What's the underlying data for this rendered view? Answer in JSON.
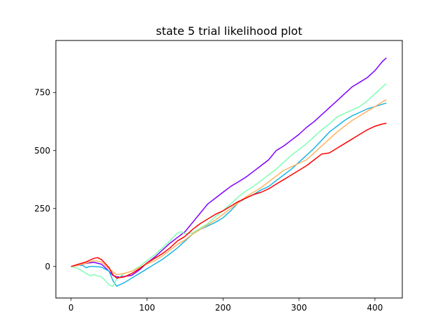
{
  "chart_data": {
    "type": "line",
    "title": "state 5 trial likelihood plot",
    "xlabel": "",
    "ylabel": "",
    "xlim": [
      -20,
      436
    ],
    "ylim": [
      -136,
      975
    ],
    "xticks": [
      0,
      100,
      200,
      300,
      400
    ],
    "yticks": [
      0,
      250,
      500,
      750
    ],
    "grid": false,
    "legend": "none",
    "series": [
      {
        "color": "#8000ff",
        "points": [
          [
            0,
            0
          ],
          [
            10,
            5
          ],
          [
            20,
            14
          ],
          [
            30,
            18
          ],
          [
            40,
            10
          ],
          [
            50,
            -20
          ],
          [
            55,
            -38
          ],
          [
            60,
            -45
          ],
          [
            70,
            -43
          ],
          [
            80,
            -38
          ],
          [
            90,
            -15
          ],
          [
            100,
            15
          ],
          [
            110,
            40
          ],
          [
            120,
            70
          ],
          [
            130,
            100
          ],
          [
            140,
            125
          ],
          [
            150,
            150
          ],
          [
            160,
            190
          ],
          [
            170,
            230
          ],
          [
            180,
            270
          ],
          [
            190,
            295
          ],
          [
            200,
            320
          ],
          [
            210,
            345
          ],
          [
            220,
            365
          ],
          [
            230,
            385
          ],
          [
            240,
            410
          ],
          [
            250,
            435
          ],
          [
            260,
            460
          ],
          [
            270,
            500
          ],
          [
            280,
            520
          ],
          [
            290,
            545
          ],
          [
            300,
            570
          ],
          [
            310,
            600
          ],
          [
            320,
            625
          ],
          [
            330,
            655
          ],
          [
            340,
            685
          ],
          [
            350,
            715
          ],
          [
            360,
            745
          ],
          [
            370,
            775
          ],
          [
            380,
            795
          ],
          [
            390,
            815
          ],
          [
            400,
            845
          ],
          [
            410,
            885
          ],
          [
            415,
            900
          ]
        ]
      },
      {
        "color": "#1ab4e6",
        "points": [
          [
            0,
            0
          ],
          [
            10,
            5
          ],
          [
            15,
            5
          ],
          [
            20,
            -5
          ],
          [
            25,
            0
          ],
          [
            30,
            0
          ],
          [
            40,
            -3
          ],
          [
            50,
            -20
          ],
          [
            55,
            -60
          ],
          [
            60,
            -85
          ],
          [
            70,
            -70
          ],
          [
            80,
            -50
          ],
          [
            90,
            -30
          ],
          [
            100,
            -10
          ],
          [
            110,
            10
          ],
          [
            120,
            30
          ],
          [
            130,
            55
          ],
          [
            140,
            80
          ],
          [
            150,
            110
          ],
          [
            160,
            140
          ],
          [
            170,
            160
          ],
          [
            180,
            175
          ],
          [
            190,
            190
          ],
          [
            200,
            210
          ],
          [
            210,
            240
          ],
          [
            220,
            275
          ],
          [
            230,
            295
          ],
          [
            240,
            310
          ],
          [
            250,
            330
          ],
          [
            260,
            345
          ],
          [
            270,
            370
          ],
          [
            280,
            395
          ],
          [
            290,
            420
          ],
          [
            300,
            450
          ],
          [
            310,
            480
          ],
          [
            320,
            510
          ],
          [
            330,
            545
          ],
          [
            340,
            580
          ],
          [
            350,
            605
          ],
          [
            360,
            630
          ],
          [
            370,
            650
          ],
          [
            380,
            665
          ],
          [
            390,
            680
          ],
          [
            400,
            690
          ],
          [
            410,
            700
          ],
          [
            415,
            705
          ]
        ]
      },
      {
        "color": "#80ffb4",
        "points": [
          [
            0,
            0
          ],
          [
            10,
            -10
          ],
          [
            20,
            -30
          ],
          [
            25,
            -40
          ],
          [
            30,
            -35
          ],
          [
            40,
            -45
          ],
          [
            45,
            -60
          ],
          [
            50,
            -80
          ],
          [
            55,
            -85
          ],
          [
            60,
            -55
          ],
          [
            70,
            -30
          ],
          [
            80,
            -20
          ],
          [
            90,
            0
          ],
          [
            100,
            25
          ],
          [
            110,
            50
          ],
          [
            120,
            80
          ],
          [
            130,
            110
          ],
          [
            140,
            145
          ],
          [
            145,
            150
          ],
          [
            150,
            140
          ],
          [
            160,
            145
          ],
          [
            170,
            165
          ],
          [
            180,
            185
          ],
          [
            190,
            215
          ],
          [
            200,
            240
          ],
          [
            210,
            270
          ],
          [
            220,
            300
          ],
          [
            230,
            325
          ],
          [
            240,
            345
          ],
          [
            250,
            370
          ],
          [
            260,
            395
          ],
          [
            270,
            420
          ],
          [
            280,
            450
          ],
          [
            290,
            480
          ],
          [
            300,
            505
          ],
          [
            310,
            530
          ],
          [
            320,
            560
          ],
          [
            330,
            590
          ],
          [
            340,
            615
          ],
          [
            350,
            645
          ],
          [
            360,
            660
          ],
          [
            370,
            675
          ],
          [
            380,
            690
          ],
          [
            390,
            715
          ],
          [
            400,
            745
          ],
          [
            410,
            775
          ],
          [
            415,
            790
          ]
        ]
      },
      {
        "color": "#ffb360",
        "points": [
          [
            0,
            0
          ],
          [
            10,
            5
          ],
          [
            20,
            15
          ],
          [
            30,
            25
          ],
          [
            40,
            20
          ],
          [
            50,
            -10
          ],
          [
            60,
            -35
          ],
          [
            70,
            -30
          ],
          [
            80,
            -20
          ],
          [
            90,
            -5
          ],
          [
            100,
            10
          ],
          [
            110,
            25
          ],
          [
            120,
            45
          ],
          [
            130,
            70
          ],
          [
            140,
            95
          ],
          [
            150,
            115
          ],
          [
            160,
            140
          ],
          [
            170,
            160
          ],
          [
            180,
            180
          ],
          [
            190,
            200
          ],
          [
            200,
            225
          ],
          [
            210,
            250
          ],
          [
            220,
            275
          ],
          [
            230,
            300
          ],
          [
            240,
            320
          ],
          [
            250,
            340
          ],
          [
            260,
            365
          ],
          [
            270,
            390
          ],
          [
            280,
            415
          ],
          [
            290,
            430
          ],
          [
            300,
            445
          ],
          [
            310,
            460
          ],
          [
            320,
            490
          ],
          [
            330,
            520
          ],
          [
            340,
            550
          ],
          [
            350,
            580
          ],
          [
            360,
            605
          ],
          [
            370,
            630
          ],
          [
            380,
            650
          ],
          [
            390,
            670
          ],
          [
            400,
            690
          ],
          [
            410,
            710
          ],
          [
            415,
            720
          ]
        ]
      },
      {
        "color": "#ff0000",
        "points": [
          [
            0,
            0
          ],
          [
            10,
            10
          ],
          [
            20,
            20
          ],
          [
            30,
            35
          ],
          [
            35,
            38
          ],
          [
            40,
            30
          ],
          [
            50,
            -5
          ],
          [
            55,
            -35
          ],
          [
            60,
            -50
          ],
          [
            70,
            -45
          ],
          [
            80,
            -30
          ],
          [
            90,
            -10
          ],
          [
            100,
            15
          ],
          [
            110,
            35
          ],
          [
            120,
            55
          ],
          [
            130,
            80
          ],
          [
            140,
            110
          ],
          [
            150,
            130
          ],
          [
            160,
            160
          ],
          [
            170,
            185
          ],
          [
            180,
            205
          ],
          [
            190,
            225
          ],
          [
            200,
            240
          ],
          [
            210,
            260
          ],
          [
            220,
            280
          ],
          [
            230,
            295
          ],
          [
            240,
            310
          ],
          [
            250,
            320
          ],
          [
            260,
            335
          ],
          [
            270,
            355
          ],
          [
            280,
            375
          ],
          [
            290,
            395
          ],
          [
            300,
            415
          ],
          [
            310,
            435
          ],
          [
            320,
            460
          ],
          [
            330,
            485
          ],
          [
            340,
            490
          ],
          [
            350,
            510
          ],
          [
            360,
            530
          ],
          [
            370,
            550
          ],
          [
            380,
            570
          ],
          [
            390,
            590
          ],
          [
            400,
            605
          ],
          [
            410,
            615
          ],
          [
            415,
            618
          ]
        ]
      }
    ]
  }
}
